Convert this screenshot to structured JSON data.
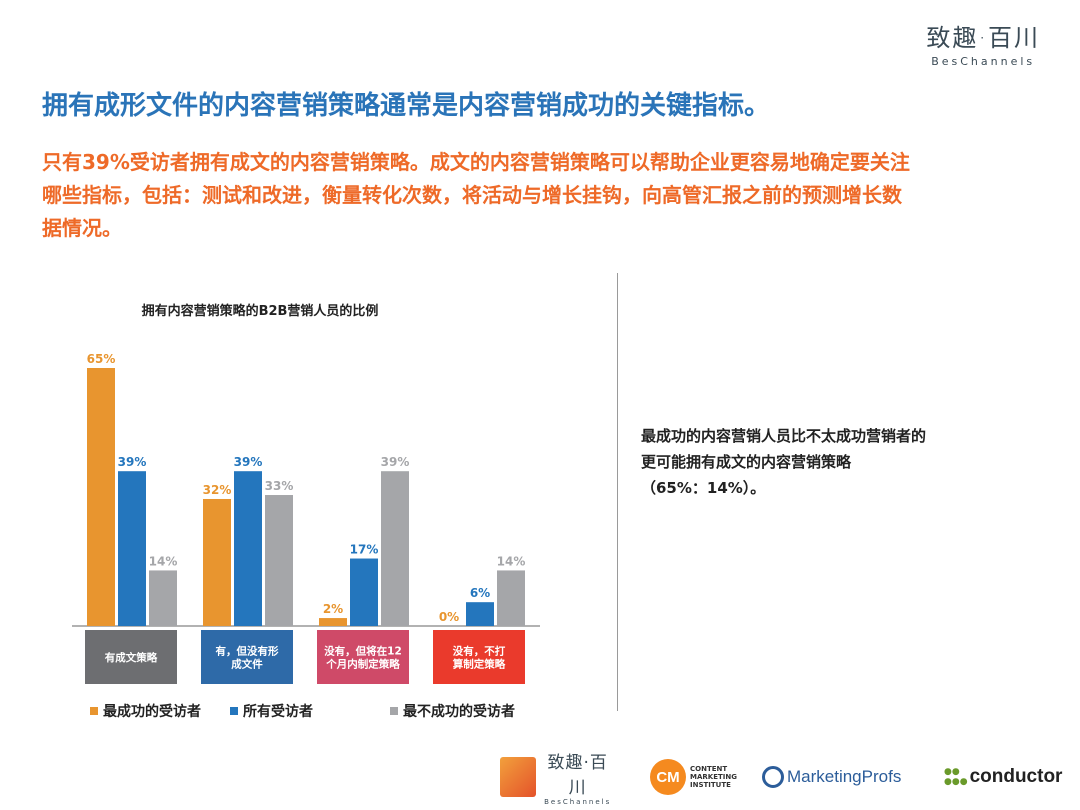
{
  "brand": {
    "name_cn": "致趣·百川",
    "name_en": "BesChannels"
  },
  "headline": "拥有成形文件的内容营销策略通常是内容营销成功的关键指标。",
  "intro_lines": [
    "只有39%受访者拥有成文的内容营销策略。成文的内容营销策略可以帮助企业更容易地确定要关注",
    "哪些指标，包括：测试和改进，衡量转化次数，将活动与增长挂钩，向高管汇报之前的预测增长数",
    "据情况。"
  ],
  "side_note": [
    "最成功的内容营销人员比不太成功营销者的",
    "更可能拥有成文的内容营销策略",
    "（65%：14%）。"
  ],
  "chart_data": {
    "type": "bar",
    "title": "拥有内容营销策略的B2B营销人员的比例",
    "categories": [
      [
        "有成文策略"
      ],
      [
        "有，但没有形",
        "成文件"
      ],
      [
        "没有，但将在12",
        "个月内制定策略"
      ],
      [
        "没有，不打",
        "算制定策略"
      ]
    ],
    "category_colors": [
      "#6d6e71",
      "#2e6aa8",
      "#cf4a68",
      "#ea3a2c"
    ],
    "series": [
      {
        "name": "最成功的受访者",
        "color": "#e8952f",
        "values": [
          65,
          32,
          2,
          0
        ],
        "labels": [
          "65%",
          "32%",
          "2%",
          "0%"
        ]
      },
      {
        "name": "所有受访者",
        "color": "#2476bd",
        "values": [
          39,
          39,
          17,
          6
        ],
        "labels": [
          "39%",
          "39%",
          "17%",
          "6%"
        ]
      },
      {
        "name": "最不成功的受访者",
        "color": "#a5a6a9",
        "values": [
          14,
          33,
          39,
          14
        ],
        "labels": [
          "14%",
          "33%",
          "39%",
          "14%"
        ]
      }
    ],
    "ylim": [
      0,
      65
    ],
    "legend_position": "bottom",
    "grid": false
  },
  "footer_logos": {
    "besc": {
      "name_cn": "致趣·百川",
      "name_en": "BesChannels"
    },
    "cmi": {
      "badge": "CM",
      "lines": [
        "CONTENT",
        "MARKETING",
        "INSTITUTE"
      ]
    },
    "mprofs": {
      "name": "MarketingProfs"
    },
    "conductor": {
      "name": "conductor"
    }
  }
}
